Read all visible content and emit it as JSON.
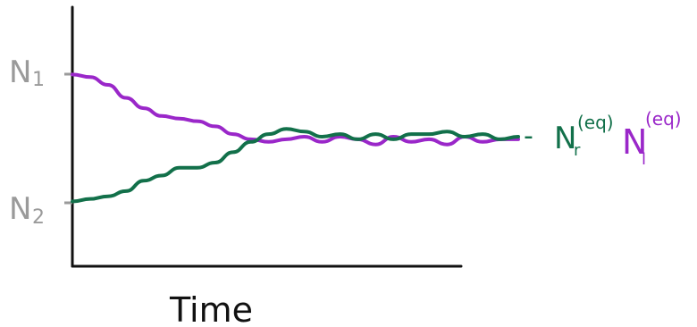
{
  "labels": {
    "y_top": {
      "main": "N",
      "sub": "1"
    },
    "y_bottom": {
      "main": "N",
      "sub": "2"
    },
    "xlabel": "Time",
    "legend_green": {
      "dash": "-",
      "main": "N",
      "sub": "r",
      "sup": "(eq)"
    },
    "legend_purple": {
      "main": "N",
      "sub": "l",
      "sup": "(eq)"
    }
  },
  "colors": {
    "axis": "#111111",
    "series_purple": "#9a27c9",
    "series_green": "#12704a",
    "initial_label": "#9a9a9a"
  },
  "chart_data": {
    "type": "line",
    "title": "",
    "xlabel": "Time",
    "ylabel": "",
    "xlim": [
      0,
      100
    ],
    "ylim": [
      0,
      100
    ],
    "grid": false,
    "legend": "right",
    "series": [
      {
        "name": "N_l^(eq)",
        "color": "#9a27c9",
        "x": [
          0,
          4,
          8,
          12,
          16,
          20,
          24,
          28,
          32,
          36,
          40,
          44,
          48,
          52,
          56,
          60,
          64,
          68,
          72,
          76,
          80,
          84,
          88,
          92,
          96,
          100
        ],
        "y": [
          74,
          73,
          70,
          65,
          61,
          58,
          57,
          56,
          54,
          51,
          49,
          48,
          49,
          50,
          48,
          50,
          49,
          47,
          50,
          48,
          49,
          47,
          50,
          48,
          49,
          49
        ]
      },
      {
        "name": "N_r^(eq)",
        "color": "#12704a",
        "x": [
          0,
          4,
          8,
          12,
          16,
          20,
          24,
          28,
          32,
          36,
          40,
          44,
          48,
          52,
          56,
          60,
          64,
          68,
          72,
          76,
          80,
          84,
          88,
          92,
          96,
          100
        ],
        "y": [
          25,
          26,
          27,
          29,
          33,
          35,
          38,
          38,
          40,
          44,
          48,
          51,
          53,
          52,
          50,
          51,
          49,
          51,
          49,
          51,
          51,
          52,
          50,
          51,
          49,
          50
        ]
      }
    ]
  }
}
